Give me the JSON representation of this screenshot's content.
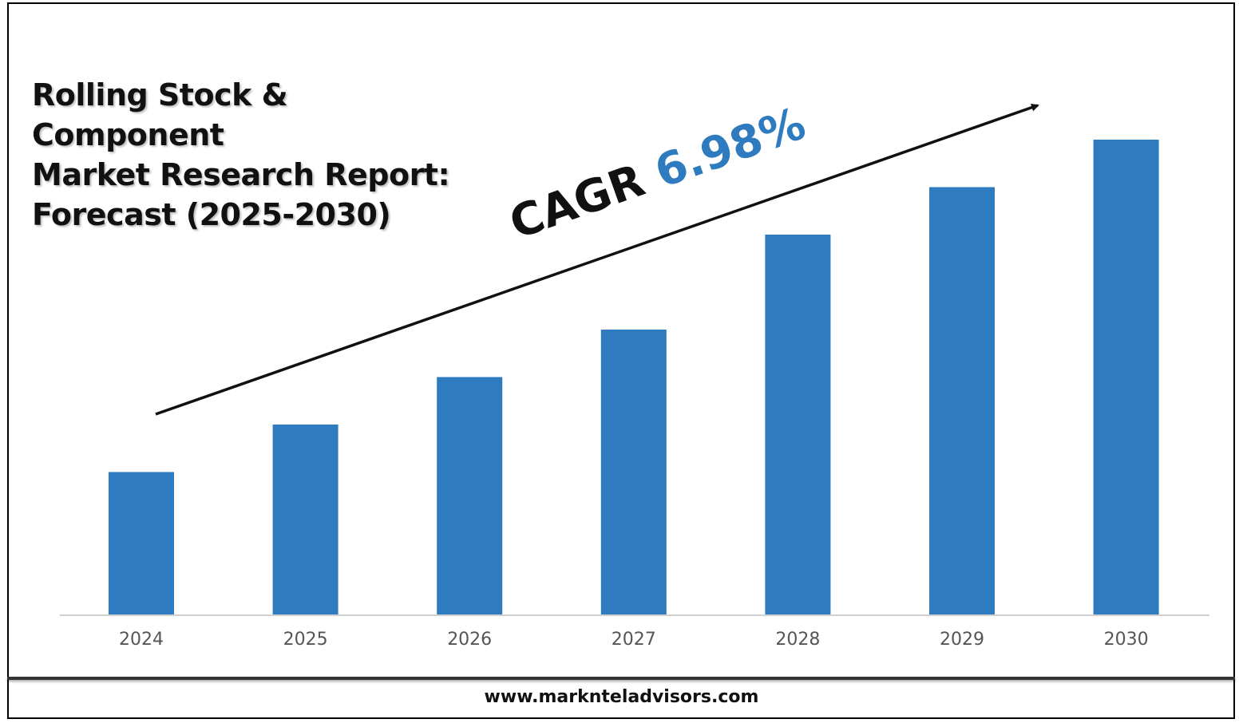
{
  "title_lines": [
    "Rolling Stock & Component",
    "Market Research Report:",
    "Forecast (2025-2030)"
  ],
  "cagr": {
    "label": "CAGR",
    "value": "6.98%"
  },
  "footer": {
    "url": "www.marknteladvisors.com"
  },
  "colors": {
    "bar": "#2e7bbf",
    "cagr_value": "#2e7bbf",
    "axis": "#d0d0d0",
    "arrow": "#111111"
  },
  "chart_data": {
    "type": "bar",
    "categories": [
      "2024",
      "2025",
      "2026",
      "2027",
      "2028",
      "2029",
      "2030"
    ],
    "series": [
      {
        "values": [
          30,
          40,
          50,
          60,
          80,
          90,
          100
        ]
      }
    ],
    "ylim": [
      0,
      100
    ],
    "grid": false,
    "legend": "none",
    "xlabel": "",
    "ylabel": ""
  }
}
